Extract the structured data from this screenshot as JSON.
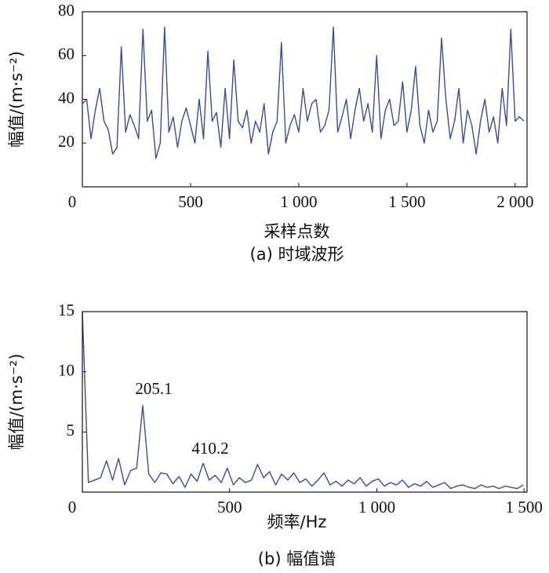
{
  "chart_data": [
    {
      "type": "line",
      "xlabel": "采样点数",
      "ylabel": "幅值/(m·s⁻²)",
      "caption": "(a) 时域波形",
      "xlim": [
        0,
        2055
      ],
      "ylim": [
        0,
        80
      ],
      "xticks": [
        0,
        500,
        {
          "value": 1000,
          "label": "1 000"
        },
        {
          "value": 1500,
          "label": "1 500"
        },
        {
          "value": 2000,
          "label": "2 000"
        }
      ],
      "yticks": [
        20,
        40,
        60,
        80
      ],
      "series": [
        {
          "color": "#3d4a9a",
          "x": [
            0,
            20,
            40,
            60,
            80,
            100,
            120,
            140,
            160,
            180,
            200,
            220,
            240,
            260,
            280,
            300,
            320,
            340,
            360,
            380,
            400,
            420,
            440,
            460,
            480,
            500,
            520,
            540,
            560,
            580,
            600,
            620,
            640,
            660,
            680,
            700,
            720,
            740,
            760,
            780,
            800,
            820,
            840,
            860,
            880,
            900,
            920,
            940,
            960,
            980,
            1000,
            1020,
            1040,
            1060,
            1080,
            1100,
            1120,
            1140,
            1160,
            1180,
            1200,
            1220,
            1240,
            1260,
            1280,
            1300,
            1320,
            1340,
            1360,
            1380,
            1400,
            1420,
            1440,
            1460,
            1480,
            1500,
            1520,
            1540,
            1560,
            1580,
            1600,
            1620,
            1640,
            1660,
            1680,
            1700,
            1720,
            1740,
            1760,
            1780,
            1800,
            1820,
            1840,
            1860,
            1880,
            1900,
            1920,
            1940,
            1960,
            1980,
            2000,
            2020,
            2040
          ],
          "values": [
            38,
            40,
            22,
            35,
            45,
            30,
            26,
            15,
            18,
            64,
            25,
            33,
            28,
            22,
            72,
            30,
            35,
            13,
            20,
            73,
            25,
            32,
            18,
            30,
            36,
            28,
            20,
            40,
            22,
            62,
            30,
            34,
            18,
            45,
            22,
            58,
            30,
            27,
            35,
            20,
            30,
            25,
            38,
            15,
            25,
            30,
            66,
            20,
            28,
            33,
            25,
            45,
            30,
            38,
            40,
            25,
            28,
            35,
            73,
            25,
            32,
            40,
            22,
            35,
            45,
            30,
            38,
            25,
            60,
            22,
            35,
            40,
            28,
            30,
            48,
            25,
            35,
            55,
            28,
            20,
            35,
            25,
            30,
            68,
            40,
            22,
            30,
            45,
            20,
            35,
            28,
            15,
            30,
            40,
            25,
            32,
            20,
            45,
            28,
            72,
            30,
            32,
            30
          ]
        }
      ]
    },
    {
      "type": "line",
      "xlabel": "频率/Hz",
      "ylabel": "幅值/(m·s⁻²)",
      "caption": "(b) 幅值谱",
      "annotations": [
        "205.1",
        "410.2"
      ],
      "xlim": [
        0,
        1510
      ],
      "ylim": [
        0,
        15
      ],
      "xticks": [
        0,
        500,
        {
          "value": 1000,
          "label": "1 000"
        },
        {
          "value": 1500,
          "label": "1 500"
        }
      ],
      "yticks": [
        5,
        10,
        15
      ],
      "series": [
        {
          "color": "#3d4a9a",
          "x": [
            0,
            20.51,
            41.02,
            61.53,
            82.04,
            102.55,
            123.06,
            143.57,
            164.08,
            184.59,
            205.1,
            225.61,
            246.12,
            266.63,
            287.14,
            307.65,
            328.16,
            348.67,
            369.18,
            389.69,
            410.2,
            430.71,
            451.22,
            471.73,
            492.24,
            512.75,
            533.26,
            553.77,
            574.28,
            594.79,
            615.3,
            635.81,
            656.32,
            676.83,
            697.34,
            717.85,
            738.36,
            758.87,
            779.38,
            799.89,
            820.4,
            840.91,
            861.42,
            881.93,
            902.44,
            922.95,
            943.46,
            963.97,
            984.48,
            1004.99,
            1025.5,
            1046.01,
            1066.52,
            1087.03,
            1107.54,
            1128.05,
            1148.56,
            1169.07,
            1189.58,
            1210.09,
            1230.6,
            1251.11,
            1271.62,
            1292.13,
            1312.64,
            1333.15,
            1353.66,
            1374.17,
            1394.68,
            1415.19,
            1435.7,
            1456.21,
            1476.72,
            1497.23
          ],
          "values": [
            15,
            0.8,
            1.0,
            1.2,
            2.6,
            1.0,
            2.8,
            0.6,
            1.8,
            2.0,
            7.2,
            1.5,
            0.8,
            1.6,
            1.5,
            0.7,
            1.3,
            0.4,
            1.5,
            0.9,
            2.4,
            1.0,
            1.4,
            0.8,
            2.0,
            0.6,
            1.2,
            0.8,
            1.0,
            2.3,
            1.2,
            1.7,
            0.6,
            1.5,
            1.0,
            1.6,
            0.8,
            1.1,
            0.5,
            1.0,
            1.6,
            0.6,
            0.9,
            0.5,
            1.0,
            0.7,
            1.2,
            0.5,
            0.9,
            1.1,
            0.5,
            0.8,
            0.6,
            1.0,
            0.4,
            0.7,
            0.5,
            0.9,
            0.4,
            0.6,
            0.8,
            0.3,
            0.5,
            0.6,
            0.4,
            0.3,
            0.6,
            0.4,
            0.5,
            0.3,
            0.5,
            0.4,
            0.3,
            0.6
          ]
        }
      ]
    }
  ]
}
